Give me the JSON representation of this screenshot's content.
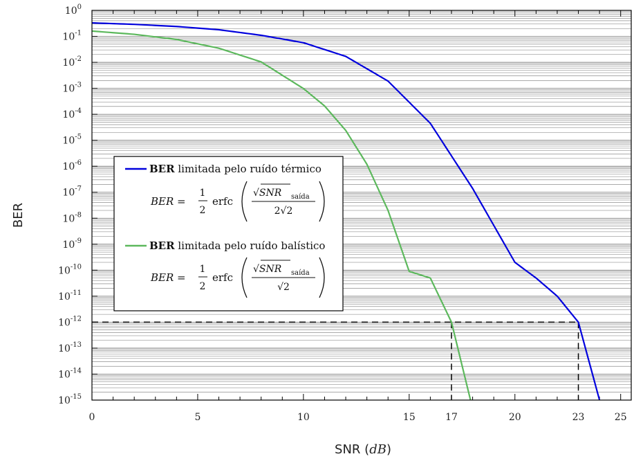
{
  "chart_data": {
    "type": "line",
    "xlabel": "SNR",
    "xlabel_unit": "dB",
    "ylabel": "BER",
    "x_range": [
      0,
      25.5
    ],
    "y_log_range": [
      1e-15,
      1
    ],
    "y_scale": "log",
    "grid": "horizontal minor lines per decade",
    "x_ticks": [
      0,
      5,
      10,
      15,
      17,
      20,
      23,
      25
    ],
    "x_tick_labels": [
      "0",
      "5",
      "10",
      "15",
      "17",
      "20",
      "23",
      "25"
    ],
    "y_tick_base": "10",
    "y_tick_exponents": [
      "0",
      "-1",
      "-2",
      "-3",
      "-4",
      "-5",
      "-6",
      "-7",
      "-8",
      "-9",
      "-10",
      "-11",
      "-12",
      "-13",
      "-14",
      "-15"
    ],
    "series": [
      {
        "name": "BER limitada pelo ruído térmico",
        "name_bold": "BER",
        "name_rest": " limitada pelo ruído térmico",
        "color": "#0000dd",
        "x": [
          0,
          2,
          4,
          6,
          8,
          10,
          12,
          14,
          16,
          18,
          20,
          21,
          22,
          23,
          24
        ],
        "y": [
          0.33,
          0.29,
          0.24,
          0.18,
          0.11,
          0.057,
          0.017,
          0.0019,
          4.5e-05,
          1.4e-07,
          2e-10,
          5e-11,
          1e-11,
          1e-12,
          1e-15
        ]
      },
      {
        "name": "BER limitada pelo ruído balístico",
        "name_bold": "BER",
        "name_rest": " limitada pelo ruído balístico",
        "color": "#5cb85c",
        "x": [
          0,
          2,
          4,
          6,
          8,
          10,
          11,
          12,
          13,
          14,
          15,
          16,
          17,
          17.9
        ],
        "y": [
          0.16,
          0.12,
          0.076,
          0.035,
          0.0104,
          0.00098,
          0.00021,
          2.4e-05,
          1.2e-06,
          2e-08,
          9e-11,
          5e-11,
          1e-12,
          1e-15
        ]
      }
    ],
    "reference_level": 1e-12,
    "reference_x": [
      17,
      23
    ],
    "legend_position": "center-left",
    "legend": [
      {
        "bold": "BER",
        "rest": " limitada pelo ruído térmico",
        "eq_lhs": "BER = ",
        "eq_half_num": "1",
        "eq_half_den": "2",
        "eq_func": "erfc",
        "eq_num": "√SNR",
        "eq_sub": "saída",
        "eq_den": "2√2"
      },
      {
        "bold": "BER",
        "rest": " limitada pelo ruído balístico",
        "eq_lhs": "BER = ",
        "eq_half_num": "1",
        "eq_half_den": "2",
        "eq_func": "erfc",
        "eq_num": "√SNR",
        "eq_sub": "saída",
        "eq_den": "√2"
      }
    ]
  }
}
